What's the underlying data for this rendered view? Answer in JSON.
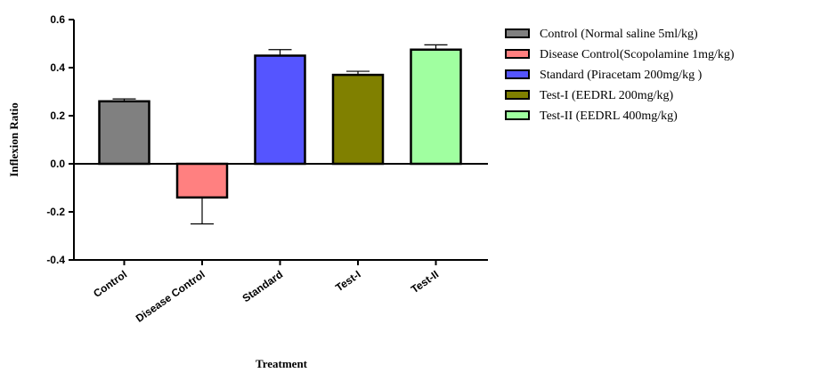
{
  "chart_data": {
    "type": "bar",
    "title": "",
    "xlabel": "Treatment",
    "ylabel": "Inflexion Ratio",
    "ylim": [
      -0.4,
      0.6
    ],
    "yticks": [
      "-0.4",
      "-0.2",
      "0.0",
      "0.2",
      "0.4",
      "0.6"
    ],
    "categories": [
      "Control",
      "Disease Control",
      "Standard",
      "Test-I",
      "Test-II"
    ],
    "values": [
      0.26,
      -0.14,
      0.45,
      0.37,
      0.475
    ],
    "errors": [
      0.01,
      0.11,
      0.025,
      0.015,
      0.02
    ],
    "colors": [
      "#808080",
      "#ff8080",
      "#5555ff",
      "#808000",
      "#a0ffa0"
    ],
    "legend_position": "top-right",
    "legend": [
      {
        "label": "Control  (Normal saline 5ml/kg)",
        "color": "#808080"
      },
      {
        "label": "Disease Control(Scopolamine 1mg/kg)",
        "color": "#ff8080"
      },
      {
        "label": "Standard (Piracetam 200mg/kg )",
        "color": "#5555ff"
      },
      {
        "label": "Test-I (EEDRL 200mg/kg)",
        "color": "#808000"
      },
      {
        "label": "Test-II (EEDRL 400mg/kg)",
        "color": "#a0ffa0"
      }
    ]
  }
}
